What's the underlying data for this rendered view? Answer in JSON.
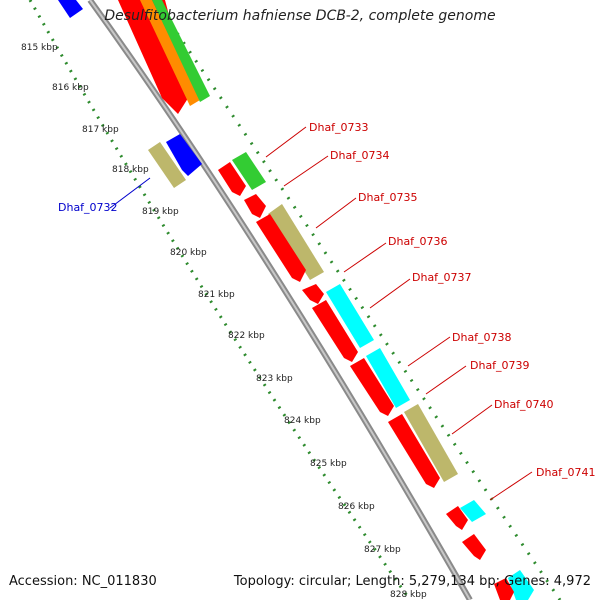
{
  "title": "Desulfitobacterium hafniense DCB-2, complete genome",
  "accession_text": "Accession: NC_011830",
  "topology_text": "Topology: circular; Length: 5,279,134 bp; Genes: 4,972",
  "colors": {
    "forward_label": "#cc0000",
    "reverse_label": "#0000cc",
    "cds": "#ff0000",
    "tan": "#bdb76b",
    "cyan": "#00ffff",
    "green": "#33cc33",
    "orange": "#ff8c00",
    "blue": "#0000ff",
    "backbone": "#888888",
    "ticks": "#2e8b2e"
  },
  "scale_labels": [
    "815 kbp",
    "816 kbp",
    "817 kbp",
    "818 kbp",
    "819 kbp",
    "820 kbp",
    "821 kbp",
    "822 kbp",
    "823 kbp",
    "824 kbp",
    "825 kbp",
    "826 kbp",
    "827 kbp",
    "828 kbp"
  ],
  "gene_labels": [
    "Dhaf_0732",
    "Dhaf_0733",
    "Dhaf_0734",
    "Dhaf_0735",
    "Dhaf_0736",
    "Dhaf_0737",
    "Dhaf_0738",
    "Dhaf_0739",
    "Dhaf_0740",
    "Dhaf_0741"
  ]
}
